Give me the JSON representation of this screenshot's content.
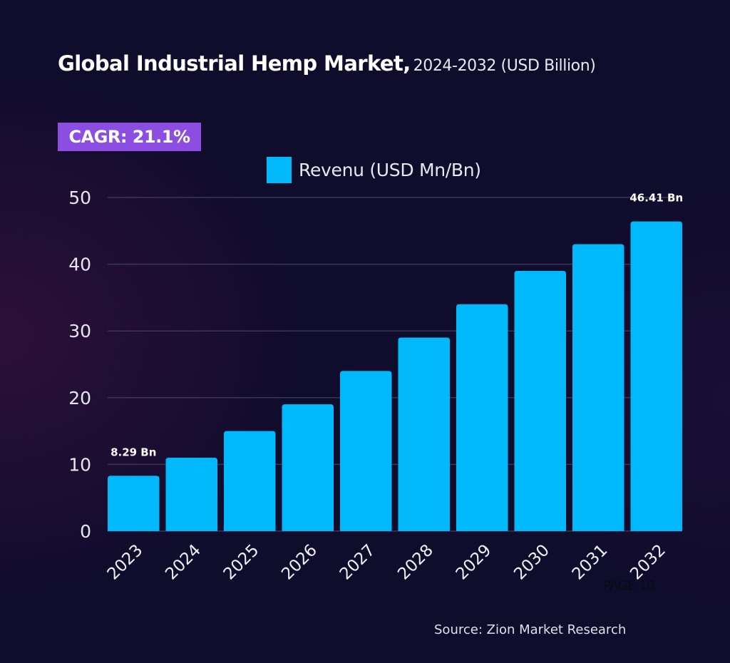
{
  "header": {
    "title_main": "Global Industrial Hemp Market,",
    "title_sub": "2024-2032 (USD Billion)"
  },
  "badge": {
    "cagr": "CAGR: 21.1%"
  },
  "footer": {
    "source": "Source: Zion Market Research",
    "page": "PAGE 10"
  },
  "colors": {
    "background": "#100c2c",
    "bar": "#00b8fa",
    "badge": "#8c4ee0",
    "grid": "#3a3658"
  },
  "chart_data": {
    "type": "bar",
    "title": "Global Industrial Hemp Market, 2024-2032 (USD Billion)",
    "xlabel": "",
    "ylabel": "",
    "ylim": [
      0,
      50
    ],
    "yticks": [
      0,
      10,
      20,
      30,
      40,
      50
    ],
    "grid": true,
    "legend": {
      "position": "top-center",
      "entries": [
        "Revenu (USD Mn/Bn)"
      ]
    },
    "categories": [
      "2023",
      "2024",
      "2025",
      "2026",
      "2027",
      "2028",
      "2029",
      "2030",
      "2031",
      "2032"
    ],
    "series": [
      {
        "name": "Revenu (USD Mn/Bn)",
        "values": [
          8.29,
          11,
          15,
          19,
          24,
          29,
          34,
          39,
          43,
          46.41
        ]
      }
    ],
    "data_labels": [
      {
        "category": "2023",
        "text": "8.29 Bn"
      },
      {
        "category": "2032",
        "text": "46.41 Bn"
      }
    ]
  }
}
